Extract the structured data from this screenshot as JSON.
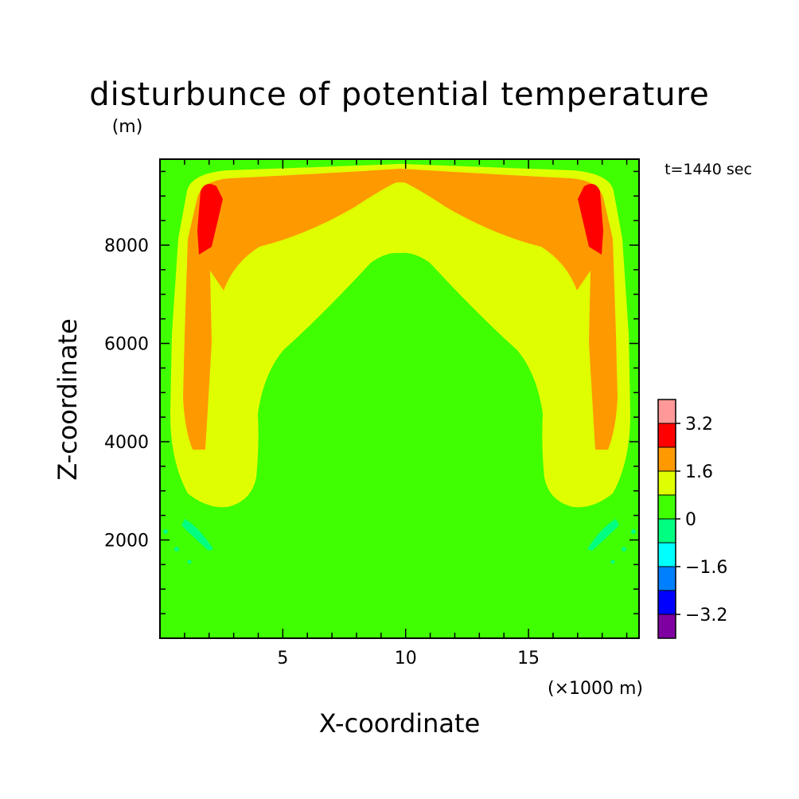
{
  "chart_data": {
    "type": "heatmap",
    "title": "disturbunce of potential temperature",
    "subtitle": "(m)",
    "time_label": "t=1440 sec",
    "xlabel": "X-coordinate",
    "x_unit": "(×1000 m)",
    "ylabel": "Z-coordinate",
    "xlim": [
      0,
      19.5
    ],
    "ylim": [
      0,
      9750
    ],
    "x_ticks": [
      5,
      10,
      15
    ],
    "y_ticks": [
      2000,
      4000,
      6000,
      8000
    ],
    "x_tick_labels": [
      "5",
      "10",
      "15"
    ],
    "y_tick_labels": [
      "2000",
      "4000",
      "6000",
      "8000"
    ],
    "colorbar": {
      "levels": [
        -4.0,
        -3.2,
        -2.4,
        -1.6,
        -0.8,
        0,
        0.8,
        1.6,
        2.4,
        3.2,
        4.0
      ],
      "colors": [
        "#7f00a0",
        "#0000ff",
        "#0080ff",
        "#00ffff",
        "#00ff80",
        "#40ff00",
        "#dfff00",
        "#ff9900",
        "#ff0000",
        "#ff9999"
      ],
      "labels": [
        "-3.2",
        "-1.6",
        "0",
        "1.6",
        "3.2"
      ],
      "label_values": [
        -3.2,
        -1.6,
        0,
        1.6,
        3.2
      ]
    },
    "regions": [
      {
        "name": "background",
        "level": "0 to 0.8",
        "color": "#40ff00"
      },
      {
        "name": "outer-envelope",
        "level": "0.8 to 1.6",
        "color": "#dfff00"
      },
      {
        "name": "plume-shell",
        "level": "1.6 to 2.4",
        "color": "#ff9900"
      },
      {
        "name": "core-left",
        "level": "2.4 to 3.2",
        "color": "#ff0000"
      },
      {
        "name": "core-right",
        "level": "2.4 to 3.2",
        "color": "#ff0000"
      },
      {
        "name": "cool-patches",
        "level": "-0.8 to 0",
        "color": "#00ff80"
      }
    ]
  }
}
